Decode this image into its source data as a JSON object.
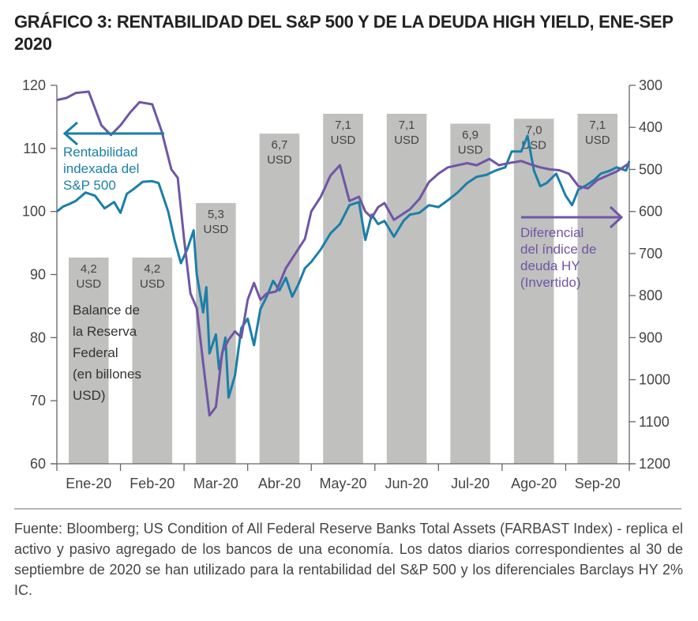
{
  "title": "GRÁFICO 3: RENTABILIDAD DEL S&P 500 Y DE LA DEUDA HIGH YIELD, ENE-SEP 2020",
  "source": "Fuente: Bloomberg; US Condition of All Federal Reserve Banks Total Assets (FARBAST Index) - replica el activo y pasivo agregado de los bancos de una economía. Los datos diarios correspondientes al 30 de septiembre de 2020 se han utilizado para la rentabilidad del S&P 500 y los diferenciales Barclays HY 2% IC.",
  "chart_data": {
    "type": "bar+line",
    "title": "GRÁFICO 3: RENTABILIDAD DEL S&P 500 Y DE LA DEUDA HIGH YIELD, ENE-SEP 2020",
    "categories": [
      "Ene-20",
      "Feb-20",
      "Mar-20",
      "Abr-20",
      "May-20",
      "Jun-20",
      "Jul-20",
      "Ago-20",
      "Sep-20"
    ],
    "left_axis": {
      "label": "Rentabilidad indexada del S&P 500",
      "range": [
        60,
        120
      ],
      "ticks": [
        60,
        70,
        80,
        90,
        100,
        110,
        120
      ]
    },
    "right_axis": {
      "label": "Diferencial del índice de deuda HY (Invertido)",
      "range": [
        1200,
        300
      ],
      "inverted": true,
      "ticks": [
        300,
        400,
        500,
        600,
        700,
        800,
        900,
        1000,
        1100,
        1200
      ]
    },
    "bars": {
      "name": "Balance de la Reserva Federal (en billones USD)",
      "axis": "left-scaled",
      "values": [
        4.2,
        4.2,
        5.3,
        6.7,
        7.1,
        7.1,
        6.9,
        7.0,
        7.1
      ],
      "labels": [
        "4,2",
        "4,2",
        "5,3",
        "6,7",
        "7,1",
        "7,1",
        "6,9",
        "7,0",
        "7,1"
      ],
      "unit": "USD",
      "color": "#c0c0bf"
    },
    "series": [
      {
        "name": "Rentabilidad indexada del S&P 500",
        "axis": "left",
        "color": "#1a7fa8",
        "x": [
          0,
          0.1,
          0.2,
          0.3,
          0.45,
          0.6,
          0.75,
          0.9,
          1.0,
          1.1,
          1.2,
          1.35,
          1.5,
          1.6,
          1.75,
          1.85,
          1.95,
          2.05,
          2.15,
          2.2,
          2.3,
          2.35,
          2.4,
          2.5,
          2.55,
          2.65,
          2.7,
          2.8,
          2.9,
          3.0,
          3.1,
          3.2,
          3.3,
          3.4,
          3.5,
          3.6,
          3.7,
          3.8,
          3.9,
          4.0,
          4.15,
          4.3,
          4.45,
          4.6,
          4.75,
          4.85,
          4.95,
          5.05,
          5.15,
          5.3,
          5.45,
          5.55,
          5.7,
          5.85,
          6.0,
          6.15,
          6.3,
          6.45,
          6.6,
          6.75,
          6.9,
          7.05,
          7.15,
          7.3,
          7.4,
          7.5,
          7.6,
          7.7,
          7.85,
          8.0,
          8.1,
          8.2,
          8.3,
          8.45,
          8.55,
          8.7,
          8.8,
          8.95,
          9.0
        ],
        "y": [
          100.0,
          100.8,
          101.2,
          101.7,
          103.0,
          102.5,
          100.5,
          101.5,
          99.8,
          102.8,
          103.5,
          104.7,
          104.8,
          104.5,
          100.0,
          95.5,
          91.8,
          94.0,
          97.0,
          90.0,
          84.0,
          88.0,
          77.5,
          80.5,
          75.0,
          80.0,
          70.5,
          74.0,
          81.5,
          83.0,
          78.8,
          84.5,
          86.5,
          89.0,
          87.5,
          89.5,
          86.5,
          88.5,
          91.0,
          92.0,
          94.0,
          96.5,
          98.0,
          101.0,
          101.5,
          95.5,
          99.5,
          98.0,
          98.5,
          96.0,
          98.5,
          99.5,
          99.8,
          101.0,
          100.7,
          101.8,
          103.0,
          104.5,
          105.5,
          105.8,
          106.5,
          107.0,
          109.5,
          109.5,
          112.0,
          106.5,
          104.0,
          104.5,
          106.0,
          102.5,
          101.0,
          103.5,
          104.0,
          105.0,
          106.0,
          106.5,
          107.0,
          106.5,
          108.0
        ]
      },
      {
        "name": "Diferencial del índice de deuda HY (Invertido)",
        "axis": "right",
        "color": "#6f56a5",
        "x": [
          0,
          0.15,
          0.3,
          0.5,
          0.7,
          0.85,
          1.0,
          1.15,
          1.3,
          1.5,
          1.65,
          1.8,
          1.9,
          2.0,
          2.1,
          2.2,
          2.3,
          2.4,
          2.5,
          2.6,
          2.7,
          2.8,
          2.9,
          3.0,
          3.1,
          3.2,
          3.3,
          3.45,
          3.6,
          3.75,
          3.9,
          4.0,
          4.15,
          4.3,
          4.45,
          4.6,
          4.75,
          4.85,
          4.95,
          5.05,
          5.15,
          5.3,
          5.45,
          5.55,
          5.7,
          5.85,
          6.0,
          6.15,
          6.3,
          6.45,
          6.6,
          6.8,
          6.95,
          7.1,
          7.3,
          7.45,
          7.6,
          7.75,
          7.9,
          8.05,
          8.2,
          8.35,
          8.5,
          8.65,
          8.8,
          8.95,
          9.0
        ],
        "y": [
          335,
          330,
          318,
          315,
          395,
          418,
          395,
          365,
          340,
          345,
          410,
          500,
          520,
          665,
          795,
          830,
          960,
          1085,
          1065,
          935,
          905,
          885,
          900,
          810,
          770,
          810,
          795,
          790,
          735,
          700,
          665,
          600,
          565,
          515,
          490,
          575,
          565,
          600,
          615,
          590,
          580,
          620,
          605,
          595,
          570,
          530,
          510,
          495,
          490,
          485,
          490,
          475,
          490,
          485,
          480,
          488,
          495,
          500,
          502,
          510,
          540,
          545,
          525,
          515,
          505,
          490,
          485
        ]
      }
    ],
    "annotations": [
      {
        "text": "Rentabilidad indexada del S&P 500",
        "arrow": "left"
      },
      {
        "text": "Diferencial del índice de deuda HY (Invertido)",
        "arrow": "right"
      },
      {
        "text": "Balance de la Reserva Federal (en billones USD)"
      }
    ],
    "grid": false,
    "legend": "inline-annotations"
  },
  "annotations": {
    "sp_label_lines": [
      "Rentabilidad",
      "indexada del",
      "S&P 500"
    ],
    "hy_label_lines": [
      "Diferencial",
      "del índice de",
      "deuda HY",
      "(Invertido)"
    ],
    "bal_label_lines": [
      "Balance de",
      "la Reserva",
      "Federal",
      "(en billones",
      "USD)"
    ]
  }
}
